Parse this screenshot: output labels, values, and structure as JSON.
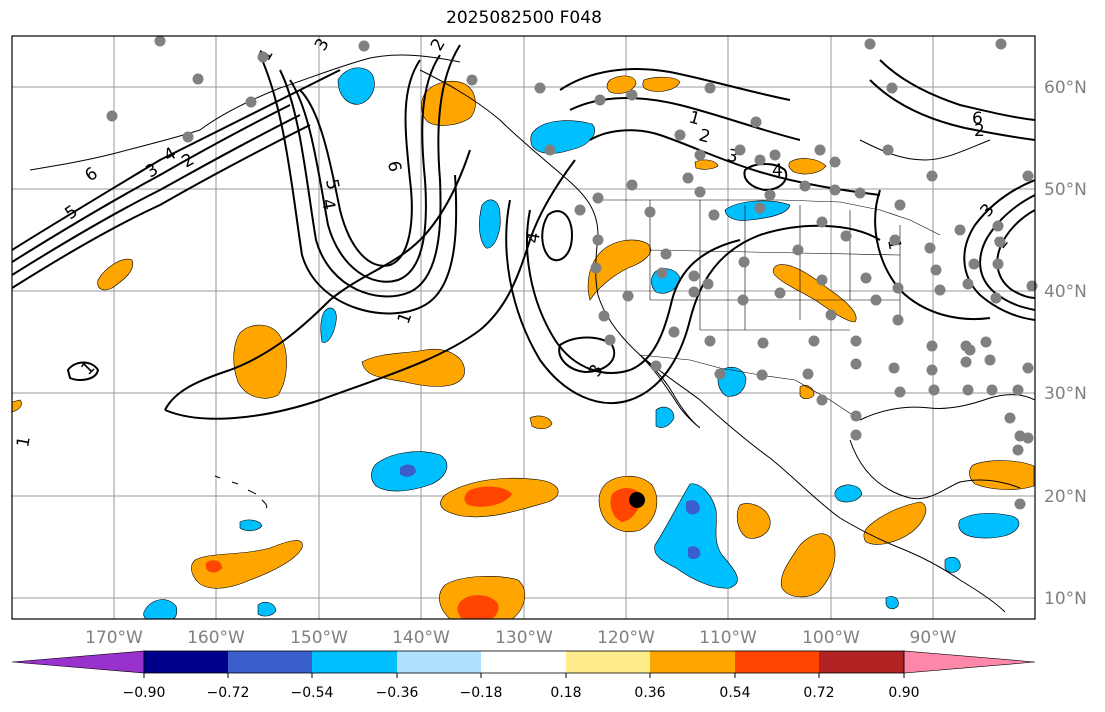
{
  "title": "2025082500 F048",
  "longitude_labels": [
    "170°W",
    "160°W",
    "150°W",
    "140°W",
    "130°W",
    "120°W",
    "110°W",
    "100°W",
    "90°W"
  ],
  "latitude_labels": [
    "60°N",
    "50°N",
    "40°N",
    "30°N",
    "20°N",
    "10°N"
  ],
  "colorbar": {
    "tick_labels": [
      "−0.90",
      "−0.72",
      "−0.54",
      "−0.36",
      "−0.18",
      "0.18",
      "0.36",
      "0.54",
      "0.72",
      "0.90"
    ],
    "colors": [
      "#9932cc",
      "#00008b",
      "#3a5fcd",
      "#00bfff",
      "#b0e2ff",
      "#ffffff",
      "#ffec8b",
      "#ffa500",
      "#ff4500",
      "#b22222",
      "#ff88aa"
    ]
  },
  "contour_labels": [
    "1",
    "2",
    "3",
    "4",
    "5",
    "6",
    "1",
    "2",
    "3",
    "4",
    "5",
    "6",
    "1",
    "2",
    "3",
    "4",
    "1",
    "2",
    "3",
    "4",
    "6",
    "1",
    "3",
    "1",
    "1"
  ],
  "colors": {
    "positive_fill": "#ffa500",
    "positive_core": "#ff4500",
    "negative_fill": "#00bfff",
    "negative_core": "#3a5fcd",
    "station_dot": "#808080",
    "marker": "#000000"
  },
  "stations": {
    "count": 90
  }
}
